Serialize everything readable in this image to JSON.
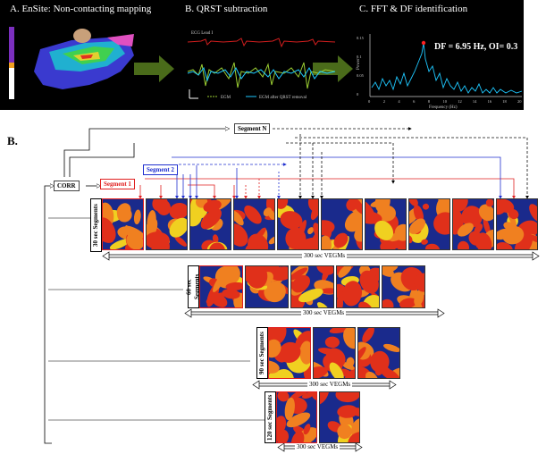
{
  "section_a_label": "A.",
  "section_b_label": "B.",
  "panel_a": {
    "title_a": "A. EnSite: Non-contacting mapping",
    "title_b": "B. QRST subtraction",
    "title_c": "C. FFT & DF identification",
    "ecg_label": "ECG Lead I",
    "legend_egm": "EGM",
    "legend_egm_after": "EGM after QRST removal",
    "df_annotation": "DF = 6.95 Hz, OI= 0.3",
    "fft_ylabel": "Power",
    "fft_xlabel": "Frequency (Hz)",
    "fft_yticks": [
      "0.15",
      "0.1",
      "0.05",
      "0"
    ],
    "fft_xticks": [
      "0",
      "2",
      "4",
      "6",
      "8",
      "10",
      "12",
      "14",
      "16",
      "18",
      "20"
    ],
    "colors": {
      "arrow": "#4a6b1a",
      "ecg": "#d21e1e",
      "egm": "#9acd32",
      "egm_after": "#1ec8ff",
      "fft": "#1ec8ff",
      "peak": "#ff2020"
    }
  },
  "panel_b": {
    "corr_label": "CORR",
    "segment_labels": [
      "Segment 1",
      "Segment 2",
      "Segment N"
    ],
    "rows": [
      {
        "label": "30 sec Segments",
        "veg_label": "300 sec VEGMs",
        "count": 10
      },
      {
        "label": "60 sec Segments",
        "veg_label": "300 sec VEGMs",
        "count": 5
      },
      {
        "label": "90 sec Segments",
        "veg_label": "300 sec VEGMs",
        "count": 3
      },
      {
        "label": "120 sec Segments",
        "veg_label": "300 sec VEGMs",
        "count": 2
      }
    ],
    "colors": {
      "seg1": "#e02020",
      "seg2": "#2030d0",
      "segN": "#111111",
      "map_bg": "#1a2a8c",
      "map_red": "#e0301a",
      "map_orange": "#f08020",
      "map_yellow": "#f0d020"
    }
  }
}
